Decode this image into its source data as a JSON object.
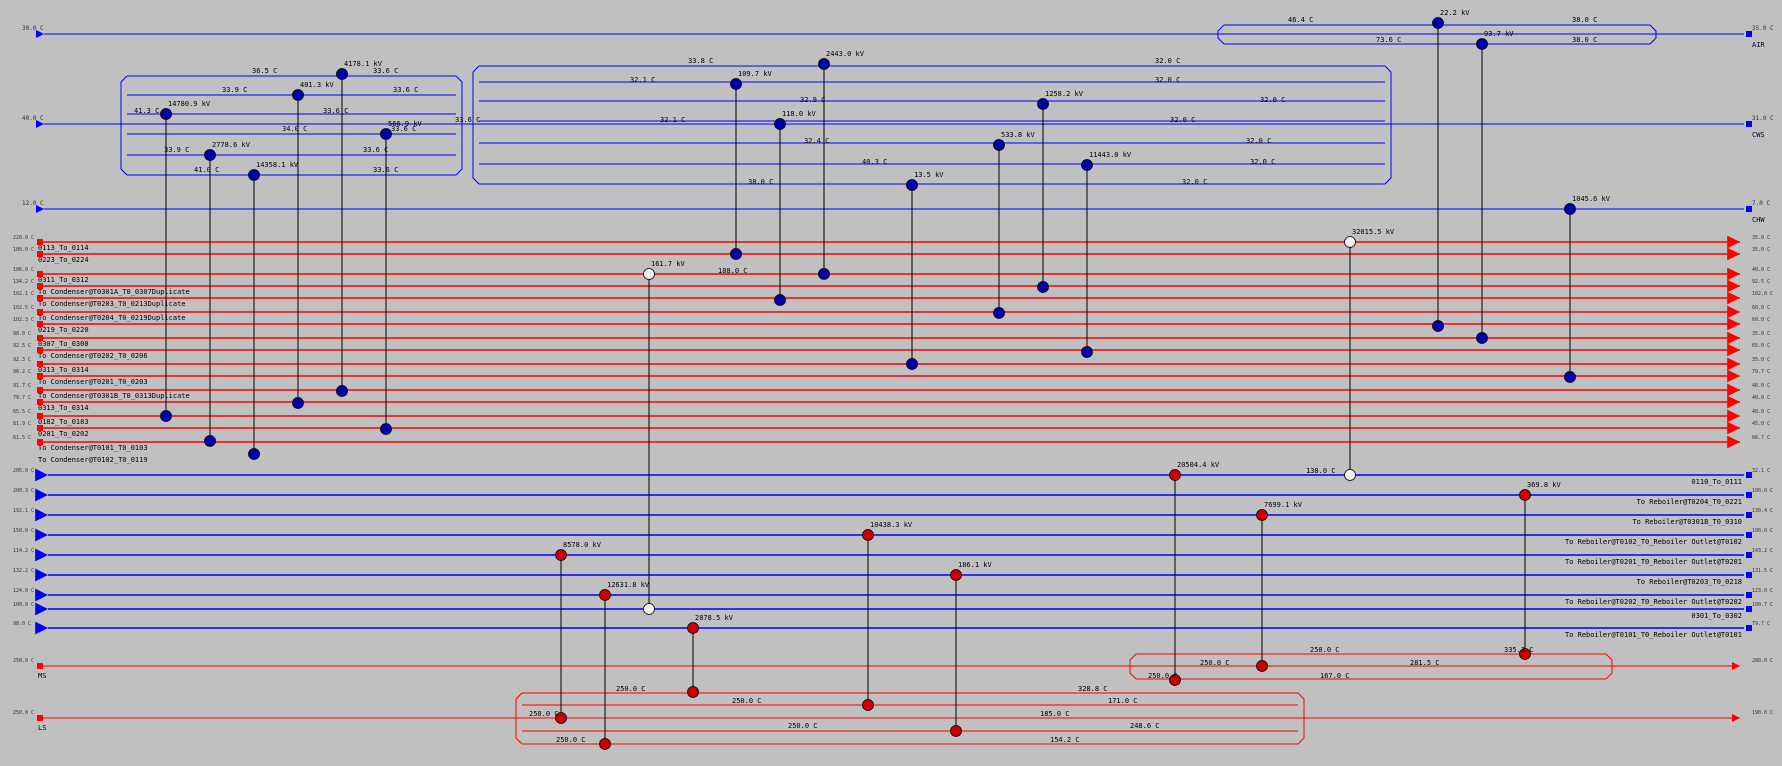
{
  "colors": {
    "hot": "#ff0000",
    "cold": "#0000ff",
    "cold_node": "#0000aa",
    "hot_node": "#cc0000",
    "bg": "#c0c0c0",
    "util_node": "#f0f0f0"
  },
  "utilities_top": [
    {
      "label": "AIR",
      "tin": "30.0 C",
      "tout": "35.0 C"
    },
    {
      "label": "CWS",
      "tin": "40.0 C",
      "tout": "31.0 C"
    },
    {
      "label": "CHW",
      "tin": "12.0 C",
      "tout": "7.0 C"
    }
  ],
  "process_hot": [
    {
      "name": "0113_To_0114",
      "tin": "220.0 C",
      "tout": "35.0 C"
    },
    {
      "name": "0223_To_0224",
      "tin": "100.0 C",
      "tout": "35.0 C"
    },
    {
      "name": "0311_To_0312",
      "tin": "106.0 C",
      "tout": "40.0 C"
    },
    {
      "name": "To Condenser@T0301A_T0_0307Duplicate",
      "tin": "134.2 C",
      "tout": "92.5 C"
    },
    {
      "name": "To Condenser@T0203_T0_0213Duplicate",
      "tin": "102.1 C",
      "tout": "102.0 C"
    },
    {
      "name": "To Condenser@T0204_T0_0219Duplicate",
      "tin": "102.5 C",
      "tout": "60.0 C"
    },
    {
      "name": "0219_To_0220",
      "tin": "102.3 C",
      "tout": "60.0 C"
    },
    {
      "name": "0307_To_0308",
      "tin": "98.0 C",
      "tout": "35.0 C"
    },
    {
      "name": "To Condenser@T0202_T0_0206",
      "tin": "92.5 C",
      "tout": "65.0 C"
    },
    {
      "name": "0313_To_0314",
      "tin": "92.3 C",
      "tout": "35.0 C"
    },
    {
      "name": "To Condenser@T0201_T0_0203",
      "tin": "96.2 C",
      "tout": "79.7 C"
    },
    {
      "name": "To Condenser@T0301B_T0_0313Duplicate",
      "tin": "91.7 C",
      "tout": "40.0 C"
    },
    {
      "name": "0313_To_0314",
      "tin": "79.7 C",
      "tout": "40.0 C"
    },
    {
      "name": "0182_To_0183",
      "tin": "65.5 C",
      "tout": "40.0 C"
    },
    {
      "name": "0201_To_0202",
      "tin": "81.9 C",
      "tout": "45.0 C"
    },
    {
      "name": "To Condenser@T0101_T0_0103",
      "tin": "61.5 C",
      "tout": "66.7 C"
    },
    {
      "name": "To Condenser@T0102_T0_0119",
      "tin": "",
      "tout": ""
    }
  ],
  "process_cold": [
    {
      "name": "0110_To_0111",
      "tin": "32.1 C",
      "tout": "205.0 C"
    },
    {
      "name": "To Reboiler@T0204_T0_0221",
      "tin": "100.0 C",
      "tout": "200.3 C"
    },
    {
      "name": "To Reboiler@T0301B_T0_0310",
      "tin": "130.4 C",
      "tout": "192.1 C"
    },
    {
      "name": "To Reboiler@T0102_T0_Reboiler Outlet@T0102",
      "tin": "100.0 C",
      "tout": "150.0 C"
    },
    {
      "name": "To Reboiler@T0201_T0_Reboiler Outlet@T0201",
      "tin": "143.2 C",
      "tout": "114.2 C"
    },
    {
      "name": "To Reboiler@T0203_T0_0218",
      "tin": "131.5 C",
      "tout": "132.2 C"
    },
    {
      "name": "To Reboiler@T0202_T0_Reboiler Outlet@T0202",
      "tin": "123.0 C",
      "tout": "124.0 C"
    },
    {
      "name": "0301_To_0302",
      "tin": "100.7 C",
      "tout": "100.0 C"
    },
    {
      "name": "To Reboiler@T0101_T0_Reboiler Outlet@T0101",
      "tin": "79.7 C",
      "tout": "98.0 C"
    }
  ],
  "utilities_bottom": [
    {
      "label": "MS",
      "tin": "250.0 C",
      "tout": "280.0 C"
    },
    {
      "label": "LS",
      "tin": "250.0 C",
      "tout": "190.0 C"
    }
  ],
  "exchangers": [
    {
      "duty": "14780.9 kV"
    },
    {
      "duty": "2778.6 kV"
    },
    {
      "duty": "14358.1 kV"
    },
    {
      "duty": "401.3 kV"
    },
    {
      "duty": "4178.1 kV"
    },
    {
      "duty": "566.9 kV"
    },
    {
      "duty": "109.7 kV"
    },
    {
      "duty": "118.0 kV"
    },
    {
      "duty": "2443.0 kV"
    },
    {
      "duty": "13.5 kV"
    },
    {
      "duty": "533.8 kV"
    },
    {
      "duty": "1258.2 kV"
    },
    {
      "duty": "11443.0 kV"
    },
    {
      "duty": "22.2 kV"
    },
    {
      "duty": "93.7 kV"
    },
    {
      "duty": "1045.6 kV"
    },
    {
      "duty": "161.7 kV"
    },
    {
      "duty": "32015.5 kV"
    },
    {
      "duty": "20504.4 kV"
    },
    {
      "duty": "369.8 kV"
    },
    {
      "duty": "7699.1 kV"
    },
    {
      "duty": "10438.3 kV"
    },
    {
      "duty": "186.1 kV"
    },
    {
      "duty": "8578.0 kV"
    },
    {
      "duty": "12631.8 kV"
    },
    {
      "duty": "2878.5 kV"
    }
  ],
  "temperatures": [
    {
      "t": "46.4 C"
    },
    {
      "t": "38.0 C"
    },
    {
      "t": "73.6 C"
    },
    {
      "t": "38.0 C"
    },
    {
      "t": "36.5 C"
    },
    {
      "t": "33.6 C"
    },
    {
      "t": "33.9 C"
    },
    {
      "t": "33.6 C"
    },
    {
      "t": "41.3 C"
    },
    {
      "t": "33.6 C"
    },
    {
      "t": "34.0 C"
    },
    {
      "t": "33.6 C"
    },
    {
      "t": "33.9 C"
    },
    {
      "t": "33.6 C"
    },
    {
      "t": "41.0 C"
    },
    {
      "t": "33.6 C"
    },
    {
      "t": "33.6 C"
    },
    {
      "t": "33.8 C"
    },
    {
      "t": "32.0 C"
    },
    {
      "t": "32.1 C"
    },
    {
      "t": "32.0 C"
    },
    {
      "t": "32.9 C"
    },
    {
      "t": "32.0 C"
    },
    {
      "t": "32.1 C"
    },
    {
      "t": "32.0 C"
    },
    {
      "t": "32.4 C"
    },
    {
      "t": "32.0 C"
    },
    {
      "t": "40.3 C"
    },
    {
      "t": "32.0 C"
    },
    {
      "t": "38.0 C"
    },
    {
      "t": "32.0 C"
    },
    {
      "t": "188.0 C"
    },
    {
      "t": "138.0 C"
    },
    {
      "t": "250.0 C"
    },
    {
      "t": "281.5 C"
    },
    {
      "t": "335.3 C"
    },
    {
      "t": "250.0 C"
    },
    {
      "t": "167.0 C"
    },
    {
      "t": "250.0 C"
    },
    {
      "t": "250.0 C"
    },
    {
      "t": "328.8 C"
    },
    {
      "t": "250.0 C"
    },
    {
      "t": "171.0 C"
    },
    {
      "t": "250.0 C"
    },
    {
      "t": "185.0 C"
    },
    {
      "t": "250.0 C"
    },
    {
      "t": "248.6 C"
    },
    {
      "t": "250.0 C"
    },
    {
      "t": "154.2 C"
    }
  ]
}
